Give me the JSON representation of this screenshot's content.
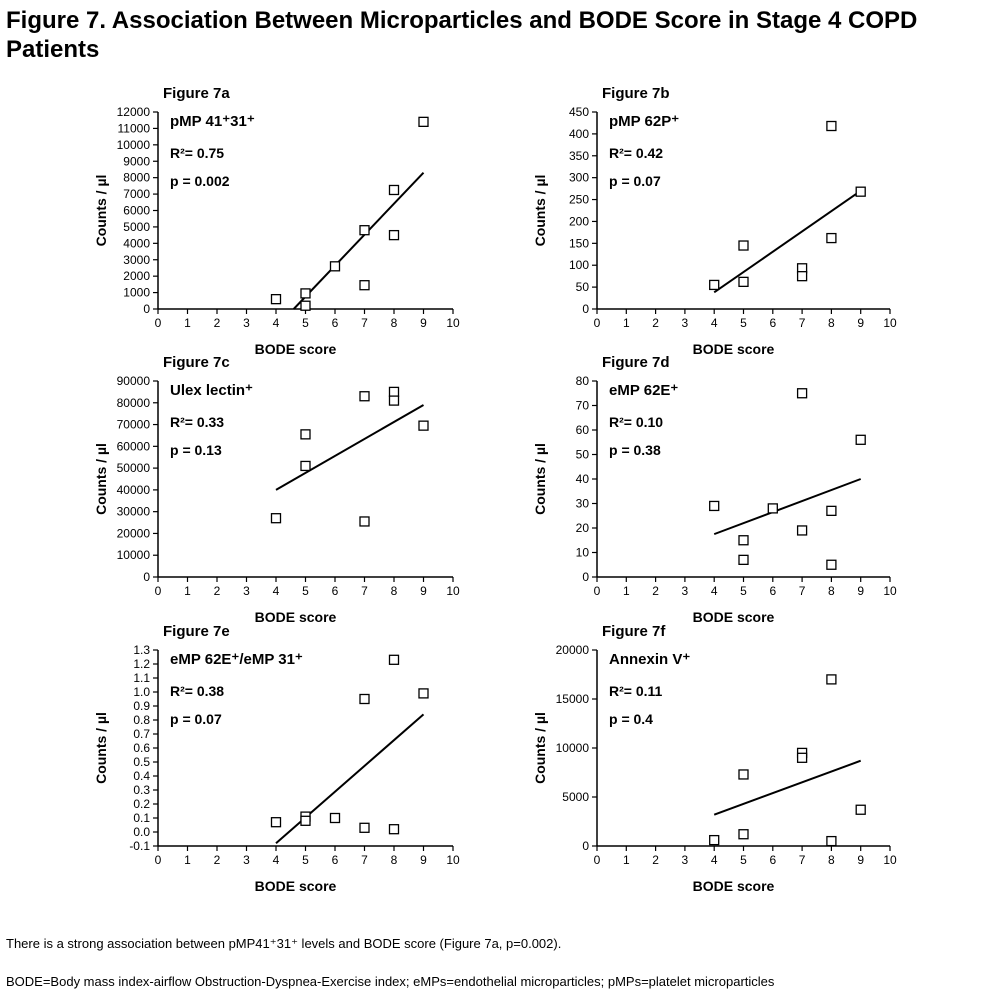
{
  "title": "Figure 7. Association Between Microparticles and BODE Score in Stage 4 COPD Patients",
  "caption": "There is a strong association between pMP41⁺31⁺ levels and BODE score (Figure 7a, p=0.002).",
  "footnote": "BODE=Body mass index-airflow Obstruction-Dyspnea-Exercise index; eMPs=endothelial microparticles; pMPs=platelet microparticles",
  "chart_data": [
    {
      "type": "scatter",
      "panel": "Figure 7a",
      "label": "pMP 41⁺31⁺",
      "stats": [
        "R²= 0.75",
        "p = 0.002"
      ],
      "xlabel": "BODE score",
      "ylabel": "Counts / µl",
      "xlim": [
        0,
        10
      ],
      "ylim": [
        0,
        12000
      ],
      "xticks": [
        0,
        1,
        2,
        3,
        4,
        5,
        6,
        7,
        8,
        9,
        10
      ],
      "yticks": [
        0,
        1000,
        2000,
        3000,
        4000,
        5000,
        6000,
        7000,
        8000,
        9000,
        10000,
        11000,
        12000
      ],
      "x": [
        4,
        5,
        5,
        6,
        7,
        7,
        8,
        8,
        9
      ],
      "y": [
        600,
        950,
        200,
        2600,
        4800,
        1450,
        4500,
        7250,
        11400
      ],
      "fit": {
        "x": [
          4.6,
          9
        ],
        "y": [
          0,
          8300
        ]
      },
      "grid": false
    },
    {
      "type": "scatter",
      "panel": "Figure 7b",
      "label": "pMP 62P⁺",
      "stats": [
        "R²= 0.42",
        "p = 0.07"
      ],
      "xlabel": "BODE score",
      "ylabel": "Counts / µl",
      "xlim": [
        0,
        10
      ],
      "ylim": [
        0,
        450
      ],
      "xticks": [
        0,
        1,
        2,
        3,
        4,
        5,
        6,
        7,
        8,
        9,
        10
      ],
      "yticks": [
        0,
        50,
        100,
        150,
        200,
        250,
        300,
        350,
        400,
        450
      ],
      "x": [
        4,
        5,
        5,
        7,
        7,
        8,
        8,
        9
      ],
      "y": [
        55,
        145,
        62,
        93,
        75,
        418,
        162,
        268
      ],
      "fit": {
        "x": [
          4,
          9
        ],
        "y": [
          38,
          270
        ]
      },
      "grid": false
    },
    {
      "type": "scatter",
      "panel": "Figure 7c",
      "label": "Ulex lectin⁺",
      "stats": [
        "R²= 0.33",
        "p = 0.13"
      ],
      "xlabel": "BODE score",
      "ylabel": "Counts / µl",
      "xlim": [
        0,
        10
      ],
      "ylim": [
        0,
        90000
      ],
      "xticks": [
        0,
        1,
        2,
        3,
        4,
        5,
        6,
        7,
        8,
        9,
        10
      ],
      "yticks": [
        0,
        10000,
        20000,
        30000,
        40000,
        50000,
        60000,
        70000,
        80000,
        90000
      ],
      "x": [
        4,
        5,
        5,
        7,
        7,
        8,
        8,
        9
      ],
      "y": [
        27000,
        65500,
        51000,
        83000,
        25500,
        85000,
        81000,
        69500
      ],
      "fit": {
        "x": [
          4,
          9
        ],
        "y": [
          40000,
          79000
        ]
      },
      "grid": false
    },
    {
      "type": "scatter",
      "panel": "Figure 7d",
      "label": "eMP 62E⁺",
      "stats": [
        "R²= 0.10",
        "p = 0.38"
      ],
      "xlabel": "BODE score",
      "ylabel": "Counts / µl",
      "xlim": [
        0,
        10
      ],
      "ylim": [
        0,
        80
      ],
      "xticks": [
        0,
        1,
        2,
        3,
        4,
        5,
        6,
        7,
        8,
        9,
        10
      ],
      "yticks": [
        0,
        10,
        20,
        30,
        40,
        50,
        60,
        70,
        80
      ],
      "x": [
        4,
        5,
        5,
        6,
        7,
        7,
        8,
        8,
        9
      ],
      "y": [
        29,
        15,
        7,
        28,
        75,
        19,
        27,
        5,
        56
      ],
      "fit": {
        "x": [
          4,
          9
        ],
        "y": [
          17.5,
          40
        ]
      },
      "grid": false
    },
    {
      "type": "scatter",
      "panel": "Figure 7e",
      "label": "eMP 62E⁺/eMP 31⁺",
      "stats": [
        "R²= 0.38",
        "p = 0.07"
      ],
      "xlabel": "BODE score",
      "ylabel": "Counts / µl",
      "xlim": [
        0,
        10
      ],
      "ylim": [
        -0.1,
        1.3
      ],
      "xticks": [
        0,
        1,
        2,
        3,
        4,
        5,
        6,
        7,
        8,
        9,
        10
      ],
      "yticks": [
        -0.1,
        0.0,
        0.1,
        0.2,
        0.3,
        0.4,
        0.5,
        0.6,
        0.7,
        0.8,
        0.9,
        1.0,
        1.1,
        1.2,
        1.3
      ],
      "ytick_labels": [
        "-0.1",
        "0.0",
        "0.1",
        "0.2",
        "0.3",
        "0.4",
        "0.5",
        "0.6",
        "0.7",
        "0.8",
        "0.9",
        "1.0",
        "1.1",
        "1.2",
        "1.3"
      ],
      "x": [
        4,
        5,
        5,
        6,
        7,
        7,
        8,
        8,
        9
      ],
      "y": [
        0.07,
        0.11,
        0.08,
        0.1,
        0.95,
        0.03,
        1.23,
        0.02,
        0.99
      ],
      "fit": {
        "x": [
          4,
          9
        ],
        "y": [
          -0.08,
          0.84
        ]
      },
      "grid": false
    },
    {
      "type": "scatter",
      "panel": "Figure 7f",
      "label": "Annexin V⁺",
      "stats": [
        "R²= 0.11",
        "p = 0.4"
      ],
      "xlabel": "BODE score",
      "ylabel": "Counts / µl",
      "xlim": [
        0,
        10
      ],
      "ylim": [
        0,
        20000
      ],
      "xticks": [
        0,
        1,
        2,
        3,
        4,
        5,
        6,
        7,
        8,
        9,
        10
      ],
      "yticks": [
        0,
        5000,
        10000,
        15000,
        20000
      ],
      "x": [
        4,
        5,
        5,
        7,
        7,
        8,
        8,
        9
      ],
      "y": [
        600,
        7300,
        1200,
        9500,
        9000,
        17000,
        500,
        3700
      ],
      "fit": {
        "x": [
          4,
          9
        ],
        "y": [
          3200,
          8700
        ]
      },
      "grid": false
    }
  ]
}
